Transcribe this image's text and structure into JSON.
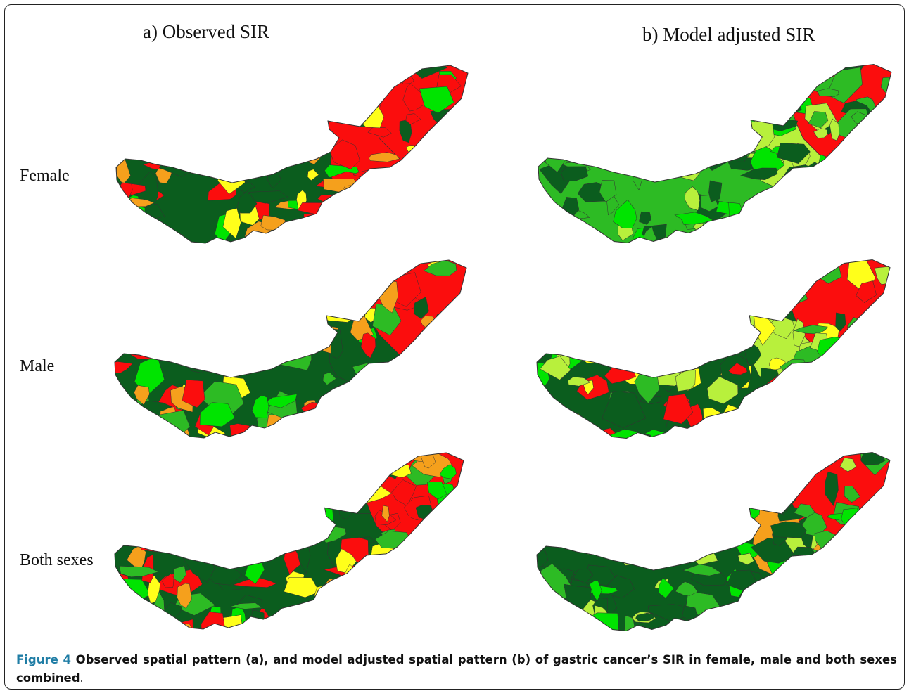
{
  "titles": {
    "observed": "a) Observed SIR",
    "model": "b) Model adjusted SIR"
  },
  "rows": [
    {
      "label": "Female"
    },
    {
      "label": "Male"
    },
    {
      "label": "Both sexes"
    }
  ],
  "caption": {
    "figure": "Figure 4",
    "text": " Observed spatial pattern (a), and model adjusted spatial pattern (b) of gastric cancer’s SIR in female, male and both sexes combined",
    "end": "."
  },
  "colors": {
    "dark_green": "#0b5d1e",
    "green": "#2dbb24",
    "light_green": "#00e400",
    "yellow_green": "#b8f03c",
    "yellow": "#ffff1a",
    "orange": "#f5a01c",
    "red": "#fb0d0d",
    "border": "#333333"
  },
  "maps": [
    {
      "id": "female-observed",
      "base": "dark_green",
      "palette": [
        "red",
        "dark_green",
        "light_green",
        "orange",
        "yellow",
        "red",
        "dark_green"
      ],
      "east": "red",
      "northeast": "red"
    },
    {
      "id": "female-model",
      "base": "green",
      "palette": [
        "dark_green",
        "green",
        "light_green",
        "yellow_green",
        "dark_green",
        "green"
      ],
      "east": "yellow_green",
      "northeast": "red"
    },
    {
      "id": "male-observed",
      "base": "dark_green",
      "palette": [
        "orange",
        "light_green",
        "red",
        "yellow",
        "dark_green",
        "green",
        "red"
      ],
      "east": "dark_green",
      "northeast": "red"
    },
    {
      "id": "male-model",
      "base": "dark_green",
      "palette": [
        "green",
        "yellow_green",
        "yellow",
        "dark_green",
        "light_green",
        "red"
      ],
      "east": "yellow_green",
      "northeast": "red"
    },
    {
      "id": "both-observed",
      "base": "dark_green",
      "palette": [
        "red",
        "orange",
        "light_green",
        "dark_green",
        "yellow",
        "green",
        "red"
      ],
      "east": "dark_green",
      "northeast": "red"
    },
    {
      "id": "both-model",
      "base": "dark_green",
      "palette": [
        "dark_green",
        "green",
        "light_green",
        "yellow_green",
        "dark_green"
      ],
      "east": "orange",
      "northeast": "red"
    }
  ]
}
